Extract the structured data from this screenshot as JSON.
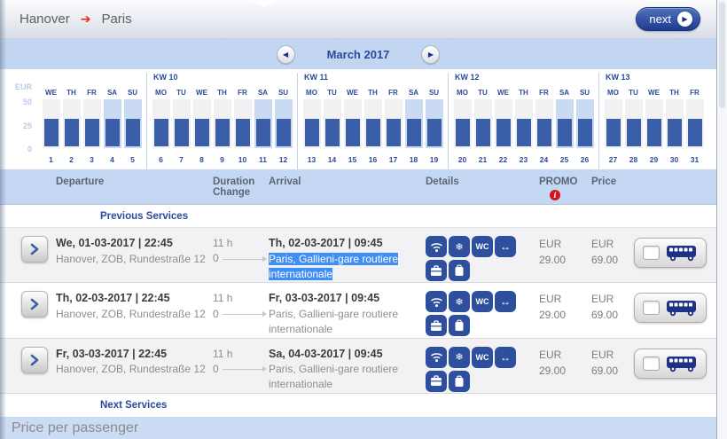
{
  "header": {
    "origin": "Hanover",
    "destination": "Paris",
    "next_label": "next"
  },
  "month_nav": {
    "label": "March 2017"
  },
  "calendar": {
    "axis_currency": "EUR",
    "axis_ticks": [
      "50",
      "25",
      "0"
    ],
    "weeks": [
      {
        "kw": "",
        "days": [
          {
            "dow": "WE",
            "date": "1",
            "weekend": false,
            "value": 29
          },
          {
            "dow": "TH",
            "date": "2",
            "weekend": false,
            "value": 29
          },
          {
            "dow": "FR",
            "date": "3",
            "weekend": false,
            "value": 29
          },
          {
            "dow": "SA",
            "date": "4",
            "weekend": true,
            "value": 29
          },
          {
            "dow": "SU",
            "date": "5",
            "weekend": true,
            "value": 29
          }
        ]
      },
      {
        "kw": "KW 10",
        "days": [
          {
            "dow": "MO",
            "date": "6",
            "weekend": false,
            "value": 29
          },
          {
            "dow": "TU",
            "date": "7",
            "weekend": false,
            "value": 29
          },
          {
            "dow": "WE",
            "date": "8",
            "weekend": false,
            "value": 29
          },
          {
            "dow": "TH",
            "date": "9",
            "weekend": false,
            "value": 29
          },
          {
            "dow": "FR",
            "date": "10",
            "weekend": false,
            "value": 29
          },
          {
            "dow": "SA",
            "date": "11",
            "weekend": true,
            "value": 29
          },
          {
            "dow": "SU",
            "date": "12",
            "weekend": true,
            "value": 29
          }
        ]
      },
      {
        "kw": "KW 11",
        "days": [
          {
            "dow": "MO",
            "date": "13",
            "weekend": false,
            "value": 29
          },
          {
            "dow": "TU",
            "date": "14",
            "weekend": false,
            "value": 29
          },
          {
            "dow": "WE",
            "date": "15",
            "weekend": false,
            "value": 29
          },
          {
            "dow": "TH",
            "date": "16",
            "weekend": false,
            "value": 29
          },
          {
            "dow": "FR",
            "date": "17",
            "weekend": false,
            "value": 29
          },
          {
            "dow": "SA",
            "date": "18",
            "weekend": true,
            "value": 29
          },
          {
            "dow": "SU",
            "date": "19",
            "weekend": true,
            "value": 29
          }
        ]
      },
      {
        "kw": "KW 12",
        "days": [
          {
            "dow": "MO",
            "date": "20",
            "weekend": false,
            "value": 29
          },
          {
            "dow": "TU",
            "date": "21",
            "weekend": false,
            "value": 29
          },
          {
            "dow": "WE",
            "date": "22",
            "weekend": false,
            "value": 29
          },
          {
            "dow": "TH",
            "date": "23",
            "weekend": false,
            "value": 29
          },
          {
            "dow": "FR",
            "date": "24",
            "weekend": false,
            "value": 29
          },
          {
            "dow": "SA",
            "date": "25",
            "weekend": true,
            "value": 29
          },
          {
            "dow": "SU",
            "date": "26",
            "weekend": true,
            "value": 29
          }
        ]
      },
      {
        "kw": "KW 13",
        "days": [
          {
            "dow": "MO",
            "date": "27",
            "weekend": false,
            "value": 29
          },
          {
            "dow": "TU",
            "date": "28",
            "weekend": false,
            "value": 29
          },
          {
            "dow": "WE",
            "date": "29",
            "weekend": false,
            "value": 29
          },
          {
            "dow": "TH",
            "date": "30",
            "weekend": false,
            "value": 29
          },
          {
            "dow": "FR",
            "date": "31",
            "weekend": false,
            "value": 29
          }
        ]
      }
    ]
  },
  "chart_data": {
    "type": "bar",
    "title": "March 2017",
    "ylabel": "EUR",
    "ylim": [
      0,
      50
    ],
    "yticks": [
      0,
      25,
      50
    ],
    "x": [
      1,
      2,
      3,
      4,
      5,
      6,
      7,
      8,
      9,
      10,
      11,
      12,
      13,
      14,
      15,
      16,
      17,
      18,
      19,
      20,
      21,
      22,
      23,
      24,
      25,
      26,
      27,
      28,
      29,
      30,
      31
    ],
    "categories": [
      "WE",
      "TH",
      "FR",
      "SA",
      "SU",
      "MO",
      "TU",
      "WE",
      "TH",
      "FR",
      "SA",
      "SU",
      "MO",
      "TU",
      "WE",
      "TH",
      "FR",
      "SA",
      "SU",
      "MO",
      "TU",
      "WE",
      "TH",
      "FR",
      "SA",
      "SU",
      "MO",
      "TU",
      "WE",
      "TH",
      "FR"
    ],
    "values": [
      29,
      29,
      29,
      29,
      29,
      29,
      29,
      29,
      29,
      29,
      29,
      29,
      29,
      29,
      29,
      29,
      29,
      29,
      29,
      29,
      29,
      29,
      29,
      29,
      29,
      29,
      29,
      29,
      29,
      29,
      29
    ],
    "week_groups": [
      {
        "label": "",
        "dates": "1-5"
      },
      {
        "label": "KW 10",
        "dates": "6-12"
      },
      {
        "label": "KW 11",
        "dates": "13-19"
      },
      {
        "label": "KW 12",
        "dates": "20-26"
      },
      {
        "label": "KW 13",
        "dates": "27-31"
      }
    ],
    "legend": null,
    "grid": false
  },
  "table": {
    "headers": {
      "departure": "Departure",
      "duration_line1": "Duration",
      "duration_line2": "Change",
      "arrival": "Arrival",
      "details": "Details",
      "promo": "PROMO",
      "price": "Price"
    },
    "sections": {
      "previous": "Previous Services",
      "next": "Next Services"
    },
    "amenity_icon_names": [
      "wifi-icon",
      "air-conditioning-icon",
      "wc-icon",
      "seat-spacing-icon",
      "hand-luggage-icon",
      "luggage-icon"
    ],
    "rows": [
      {
        "departure_time": "We, 01-03-2017 | 22:45",
        "departure_place": "Hanover, ZOB, Rundestraße 12",
        "duration": "11 h",
        "changes": "0",
        "arrival_time": "Th, 02-03-2017 | 09:45",
        "arrival_place": "Paris, Gallieni-gare routiere internationale",
        "arrival_selected": true,
        "promo_currency": "EUR",
        "promo_amount": "29.00",
        "price_currency": "EUR",
        "price_amount": "69.00"
      },
      {
        "departure_time": "Th, 02-03-2017 | 22:45",
        "departure_place": "Hanover, ZOB, Rundestraße 12",
        "duration": "11 h",
        "changes": "0",
        "arrival_time": "Fr, 03-03-2017 | 09:45",
        "arrival_place": "Paris, Gallieni-gare routiere internationale",
        "arrival_selected": false,
        "promo_currency": "EUR",
        "promo_amount": "29.00",
        "price_currency": "EUR",
        "price_amount": "69.00"
      },
      {
        "departure_time": "Fr, 03-03-2017 | 22:45",
        "departure_place": "Hanover, ZOB, Rundestraße 12",
        "duration": "11 h",
        "changes": "0",
        "arrival_time": "Sa, 04-03-2017 | 09:45",
        "arrival_place": "Paris, Gallieni-gare routiere internationale",
        "arrival_selected": false,
        "promo_currency": "EUR",
        "promo_amount": "29.00",
        "price_currency": "EUR",
        "price_amount": "69.00"
      }
    ]
  },
  "footer": {
    "label": "Price per passenger"
  },
  "colors": {
    "accent_dark_blue": "#2b4a9b",
    "bar_blue": "#3a5fa8",
    "amenity_icon_blue": "#2e4f9e",
    "band_light_blue": "#c3d6f1",
    "weekend_column_bg": "#c9daf2",
    "weekday_column_bg": "#f1f1f4",
    "promo_info_red": "#d6131c",
    "route_arrow_red": "#e2261d",
    "text_selection_blue": "#3f8ef5"
  }
}
